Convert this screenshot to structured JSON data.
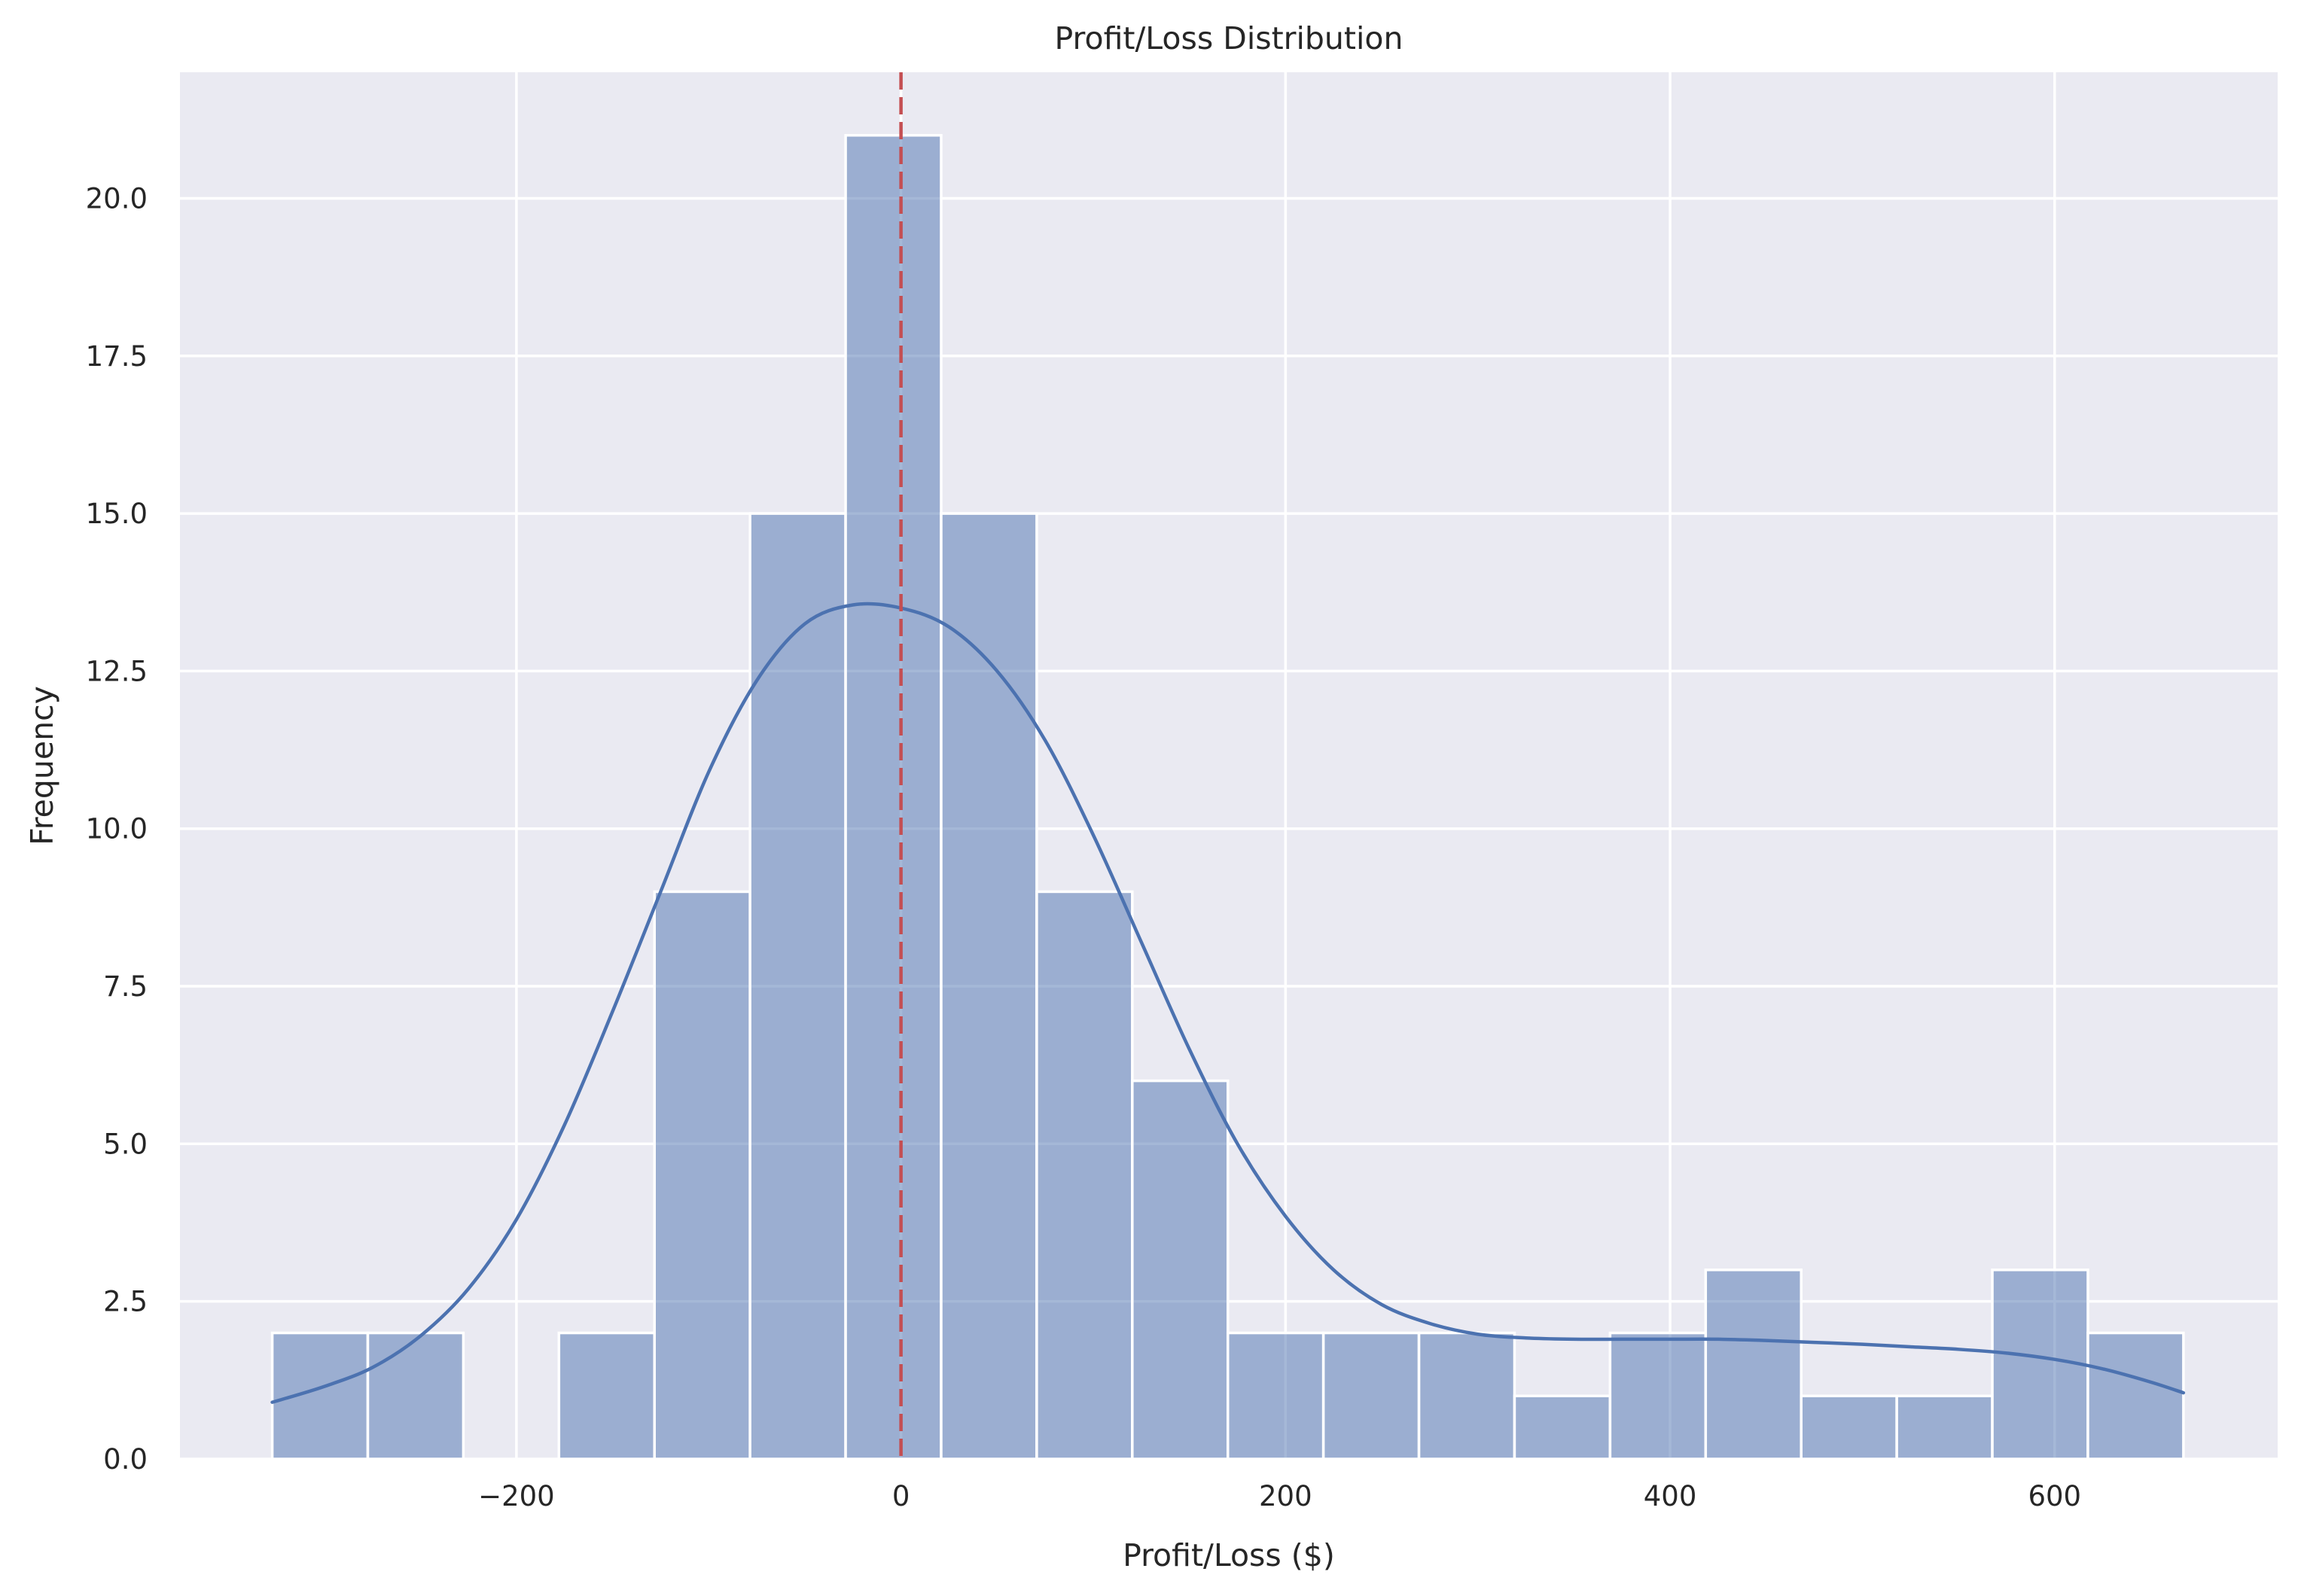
{
  "chart_data": {
    "type": "bar",
    "subtype": "histogram_with_kde",
    "title": "Profit/Loss Distribution",
    "xlabel": "Profit/Loss ($)",
    "ylabel": "Frequency",
    "xlim": [
      -375,
      716
    ],
    "ylim": [
      0,
      22.0
    ],
    "grid": true,
    "legend": null,
    "x_ticks": [
      -200,
      0,
      200,
      400,
      600
    ],
    "x_tick_labels": [
      "−200",
      "0",
      "200",
      "400",
      "600"
    ],
    "y_ticks": [
      0,
      2.5,
      5,
      7.5,
      10,
      12.5,
      15,
      17.5,
      20
    ],
    "y_tick_labels": [
      "0.0",
      "2.5",
      "5.0",
      "7.5",
      "10.0",
      "12.5",
      "15.0",
      "17.5",
      "20.0"
    ],
    "bins": {
      "start": -327,
      "width": 49.7,
      "count": 20
    },
    "categories": [
      "-327 to -277",
      "-277 to -228",
      "-228 to -178",
      "-178 to -128",
      "-128 to -79",
      "-79 to -29",
      "-29 to 21",
      "21 to 70",
      "70 to 120",
      "120 to 170",
      "170 to 219",
      "219 to 269",
      "269 to 319",
      "319 to 368",
      "368 to 418",
      "418 to 468",
      "468 to 517",
      "517 to 567",
      "567 to 617",
      "617 to 667"
    ],
    "values": [
      2,
      2,
      0,
      2,
      9,
      15,
      21,
      15,
      9,
      6,
      2,
      2,
      2,
      1,
      2,
      3,
      1,
      1,
      3,
      2
    ],
    "kde": {
      "x": [
        -327,
        -300,
        -275,
        -250,
        -225,
        -200,
        -175,
        -150,
        -125,
        -100,
        -75,
        -50,
        -25,
        0,
        25,
        50,
        75,
        100,
        125,
        150,
        175,
        200,
        225,
        250,
        275,
        300,
        325,
        350,
        375,
        400,
        425,
        450,
        475,
        500,
        525,
        550,
        575,
        600,
        625,
        650,
        667
      ],
      "y": [
        0.9,
        1.15,
        1.45,
        1.95,
        2.7,
        3.8,
        5.3,
        7.1,
        9.0,
        10.9,
        12.35,
        13.25,
        13.55,
        13.5,
        13.2,
        12.5,
        11.4,
        9.9,
        8.2,
        6.5,
        5.0,
        3.85,
        3.0,
        2.45,
        2.15,
        1.98,
        1.92,
        1.9,
        1.9,
        1.9,
        1.9,
        1.88,
        1.85,
        1.82,
        1.78,
        1.74,
        1.68,
        1.58,
        1.43,
        1.22,
        1.05
      ]
    },
    "reference_line": {
      "x": 0,
      "style": "dashed",
      "color": "#c44e52"
    },
    "colors": {
      "bar_fill": "#4c72b0",
      "bar_opacity": 0.5,
      "bar_edge": "#ffffff",
      "kde_line": "#4c72b0",
      "plot_background": "#eaeaf2",
      "grid": "#ffffff"
    }
  }
}
